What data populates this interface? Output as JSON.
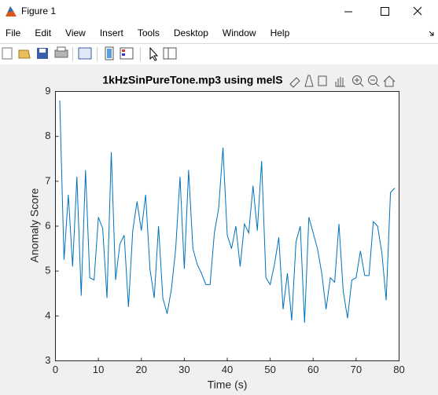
{
  "window": {
    "title": "Figure 1"
  },
  "menu": [
    "File",
    "Edit",
    "View",
    "Insert",
    "Tools",
    "Desktop",
    "Window",
    "Help"
  ],
  "chart_data": {
    "type": "line",
    "title": "1kHzSinPureTone.mp3 using melS",
    "xlabel": "Time (s)",
    "ylabel": "Anomaly Score",
    "x": [
      1,
      2,
      3,
      4,
      5,
      6,
      7,
      8,
      9,
      10,
      11,
      12,
      13,
      14,
      15,
      16,
      17,
      18,
      19,
      20,
      21,
      22,
      23,
      24,
      25,
      26,
      27,
      28,
      29,
      30,
      31,
      32,
      33,
      34,
      35,
      36,
      37,
      38,
      39,
      40,
      41,
      42,
      43,
      44,
      45,
      46,
      47,
      48,
      49,
      50,
      51,
      52,
      53,
      54,
      55,
      56,
      57,
      58,
      59,
      60,
      61,
      62,
      63,
      64,
      65,
      66,
      67,
      68,
      69,
      70,
      71,
      72,
      73,
      74,
      75,
      76,
      77,
      78,
      79
    ],
    "values": [
      8.8,
      5.25,
      6.7,
      5.1,
      7.1,
      4.45,
      7.25,
      4.85,
      4.8,
      6.2,
      5.95,
      4.4,
      7.65,
      4.8,
      5.6,
      5.8,
      4.2,
      5.9,
      6.55,
      5.9,
      6.7,
      5.05,
      4.4,
      6.0,
      4.4,
      4.05,
      4.6,
      5.5,
      7.1,
      5.05,
      7.25,
      5.5,
      5.15,
      4.95,
      4.7,
      4.7,
      5.85,
      6.4,
      7.75,
      5.8,
      5.5,
      6.0,
      5.1,
      6.05,
      5.85,
      6.9,
      5.9,
      7.45,
      4.85,
      4.7,
      5.15,
      5.75,
      4.15,
      4.95,
      3.9,
      5.65,
      6.0,
      3.85,
      6.2,
      5.85,
      5.5,
      4.95,
      4.15,
      4.85,
      4.75,
      6.05,
      4.55,
      3.95,
      4.8,
      4.85,
      5.45,
      4.9,
      4.9,
      6.1,
      6.0,
      5.4,
      4.35,
      6.75,
      6.85
    ],
    "color": "#0072bd",
    "xlim": [
      0,
      80
    ],
    "xticks": [
      0,
      10,
      20,
      30,
      40,
      50,
      60,
      70,
      80
    ],
    "ylim": [
      3,
      9
    ],
    "yticks": [
      3,
      4,
      5,
      6,
      7,
      8,
      9
    ],
    "grid": false
  }
}
